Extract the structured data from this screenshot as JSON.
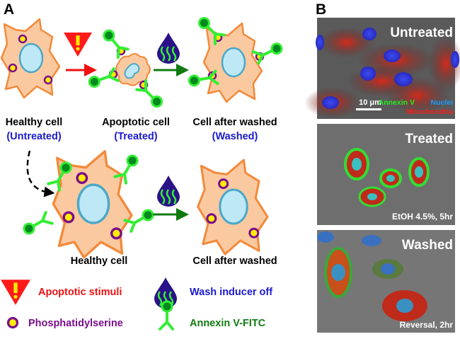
{
  "panels": {
    "a": "A",
    "b": "B"
  },
  "colors": {
    "cell_fill": "#fbc9a0",
    "cell_stroke": "#f28a3a",
    "nucleus": "#bfe8f6",
    "ps_ring": "#7a0f8c",
    "ps_fill": "#ffee00",
    "antibody": "#33ee33",
    "antibody_core": "#008a1e",
    "drop": "#2a1288",
    "stimuli": "#ff0000",
    "wash_text": "#1a1acc",
    "annexin_text": "#117a11"
  },
  "diagram": {
    "top_row": [
      {
        "title": "Healthy cell",
        "subtitle": "(Untreated)"
      },
      {
        "title": "Apoptotic cell",
        "subtitle": "(Treated)"
      },
      {
        "title": "Cell after washed",
        "subtitle": "(Washed)"
      }
    ],
    "bottom_row": [
      {
        "title": "Healthy cell"
      },
      {
        "title": "Cell after washed"
      }
    ],
    "legend": [
      {
        "icon": "warning-triangle-icon",
        "label": "Apoptotic stimuli"
      },
      {
        "icon": "drop-icon",
        "label": "Wash inducer off"
      },
      {
        "icon": "phosphatidylserine-icon",
        "label": "Phosphatidylserine"
      },
      {
        "icon": "antibody-icon",
        "label": "Annexin V-FITC"
      }
    ]
  },
  "micrographs": [
    {
      "title": "Untreated",
      "scale_bar": "10 μm",
      "stains": [
        "Annexin V",
        "Nuclei",
        "Mitochondria"
      ]
    },
    {
      "title": "Treated",
      "condition": "EtOH 4.5%, 5hr"
    },
    {
      "title": "Washed",
      "condition": "Reversal, 2hr"
    }
  ]
}
